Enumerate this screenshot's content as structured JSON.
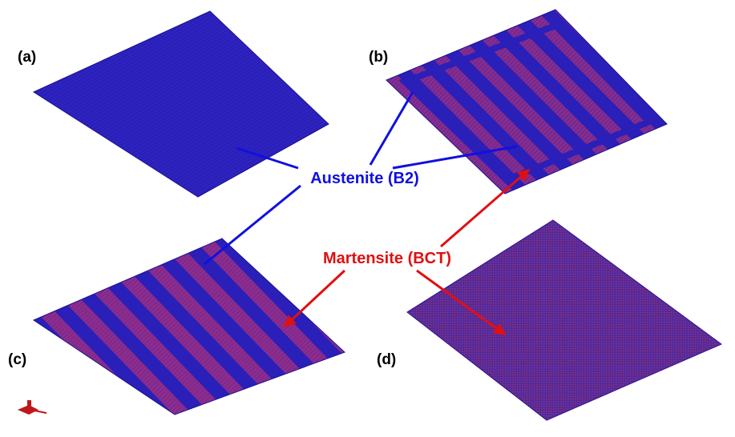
{
  "panels": [
    {
      "label": "(a)"
    },
    {
      "label": "(b)"
    },
    {
      "label": "(c)"
    },
    {
      "label": "(d)"
    }
  ],
  "annotations": {
    "austenite": "Austenite (B2)",
    "martensite": "Martensite (BCT)"
  }
}
